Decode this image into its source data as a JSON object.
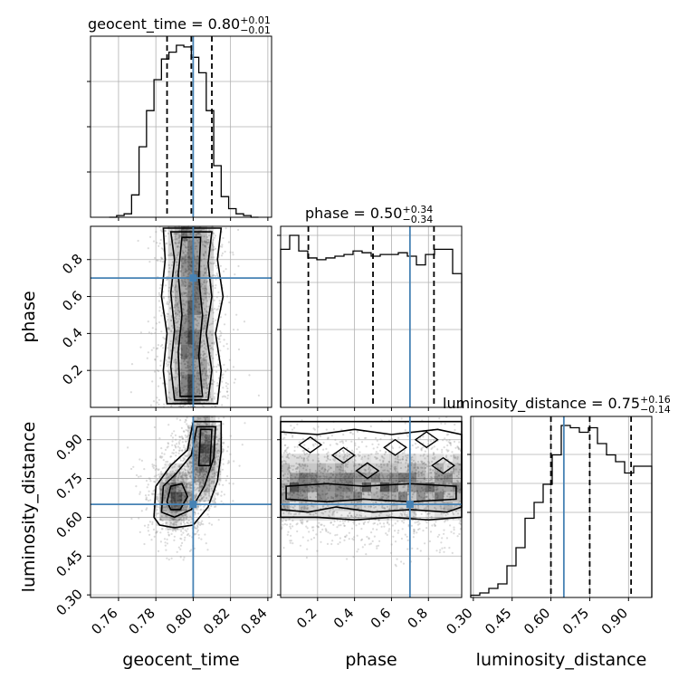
{
  "chart_data": {
    "type": "corner",
    "parameters": [
      "geocent_time",
      "phase",
      "luminosity_distance"
    ],
    "truths": {
      "geocent_time": 0.8,
      "phase": 0.7,
      "luminosity_distance": 0.65
    },
    "axis_labels": {
      "geocent_time": "geocent_time",
      "phase": "phase",
      "luminosity_distance": "luminosity_distance"
    },
    "titles": [
      {
        "param": "geocent_time",
        "text": "geocent_time = 0.80",
        "plus": "+0.01",
        "minus": "−0.01"
      },
      {
        "param": "phase",
        "text": "phase = 0.50",
        "plus": "+0.34",
        "minus": "−0.34"
      },
      {
        "param": "luminosity_distance",
        "text": "luminosity_distance = 0.75",
        "plus": "+0.16",
        "minus": "−0.14"
      }
    ],
    "ranges": {
      "geocent_time": [
        0.745,
        0.842
      ],
      "phase": [
        0.0,
        0.98
      ],
      "luminosity_distance": [
        0.29,
        0.99
      ]
    },
    "ticks": {
      "geocent_time": {
        "values": [
          0.76,
          0.78,
          0.8,
          0.82,
          0.84
        ],
        "labels": [
          "0.76",
          "0.78",
          "0.80",
          "0.82",
          "0.84"
        ]
      },
      "phase_x": {
        "values": [
          0.2,
          0.4,
          0.6,
          0.8
        ],
        "labels": [
          "0.2",
          "0.4",
          "0.6",
          "0.8"
        ]
      },
      "phase_y": {
        "values": [
          0.2,
          0.4,
          0.6,
          0.8
        ],
        "labels": [
          "0.2",
          "0.4",
          "0.6",
          "0.8"
        ]
      },
      "luminosity_distance": {
        "values": [
          0.3,
          0.45,
          0.6,
          0.75,
          0.9
        ],
        "labels": [
          "0.30",
          "0.45",
          "0.60",
          "0.75",
          "0.90"
        ]
      }
    },
    "quantiles": {
      "geocent_time": [
        0.786,
        0.799,
        0.81
      ],
      "phase": [
        0.15,
        0.5,
        0.83
      ],
      "luminosity_distance": [
        0.6,
        0.75,
        0.91
      ]
    },
    "histograms": {
      "geocent_time": {
        "edges": [
          0.755,
          0.759,
          0.763,
          0.767,
          0.771,
          0.775,
          0.779,
          0.783,
          0.787,
          0.791,
          0.795,
          0.799,
          0.803,
          0.807,
          0.811,
          0.815,
          0.819,
          0.823,
          0.827,
          0.831,
          0.835
        ],
        "values": [
          0.0,
          0.01,
          0.02,
          0.13,
          0.41,
          0.62,
          0.8,
          0.92,
          0.96,
          1.0,
          0.99,
          0.93,
          0.84,
          0.62,
          0.3,
          0.12,
          0.05,
          0.02,
          0.01,
          0.0
        ]
      },
      "phase": {
        "edges": [
          0.0,
          0.049,
          0.098,
          0.147,
          0.196,
          0.245,
          0.294,
          0.343,
          0.392,
          0.441,
          0.49,
          0.539,
          0.588,
          0.637,
          0.686,
          0.735,
          0.784,
          0.833,
          0.882,
          0.931,
          0.98
        ],
        "values": [
          0.91,
          0.99,
          0.9,
          0.86,
          0.85,
          0.86,
          0.87,
          0.88,
          0.9,
          0.89,
          0.87,
          0.88,
          0.88,
          0.89,
          0.87,
          0.82,
          0.88,
          0.91,
          0.91,
          0.77
        ]
      },
      "luminosity_distance": {
        "edges": [
          0.29,
          0.325,
          0.36,
          0.395,
          0.43,
          0.465,
          0.5,
          0.535,
          0.57,
          0.605,
          0.64,
          0.675,
          0.71,
          0.745,
          0.78,
          0.815,
          0.85,
          0.885,
          0.92,
          0.955,
          0.99
        ],
        "values": [
          0.01,
          0.02,
          0.04,
          0.06,
          0.14,
          0.22,
          0.35,
          0.42,
          0.5,
          0.63,
          0.76,
          0.75,
          0.73,
          0.75,
          0.68,
          0.63,
          0.6,
          0.55,
          0.58,
          0.58
        ]
      }
    }
  }
}
